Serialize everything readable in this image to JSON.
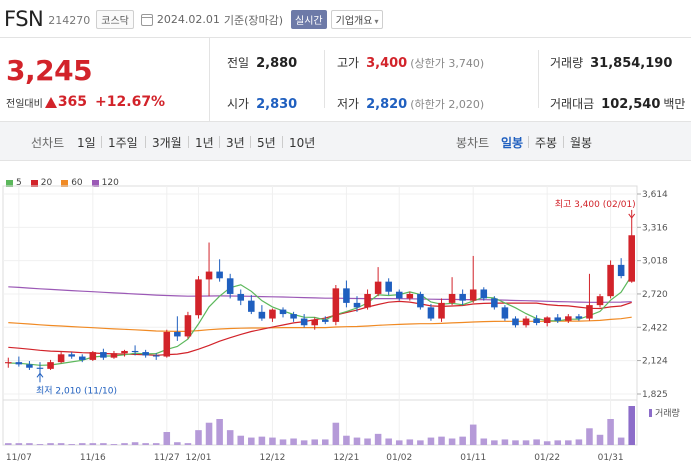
{
  "header": {
    "ticker": "FSN",
    "code": "214270",
    "market": "코스닥",
    "date": "2024.02.01",
    "basis": "기준(장마감)",
    "realtime": "실시간",
    "company_info": "기업개요",
    "calendar_icon": "calendar-icon",
    "chevron_icon": "chevron-down-icon"
  },
  "price": {
    "current": "3,245",
    "change_label": "전일대비",
    "change_amount": "365",
    "change_percent": "+12.67%",
    "up_color": "#d2232a",
    "down_color": "#1f5fbf"
  },
  "stats": {
    "prev_close": {
      "label": "전일",
      "value": "2,880"
    },
    "open": {
      "label": "시가",
      "value": "2,830"
    },
    "high": {
      "label": "고가",
      "value": "3,400",
      "sub": "(상한가 3,740)"
    },
    "low": {
      "label": "저가",
      "value": "2,820",
      "sub": "(하한가 2,020)"
    },
    "volume": {
      "label": "거래량",
      "value": "31,854,190"
    },
    "amount": {
      "label": "거래대금",
      "value": "102,540",
      "unit": "백만"
    }
  },
  "periods": {
    "line_label": "선차트",
    "line_items": [
      "1일",
      "1주일",
      "3개월",
      "1년",
      "3년",
      "5년",
      "10년"
    ],
    "candle_label": "봉차트",
    "candle_items": [
      "일봉",
      "주봉",
      "월봉"
    ],
    "selected_candle": "일봉"
  },
  "chart_data": {
    "type": "candlestick",
    "legend": [
      {
        "name": "5",
        "color": "#5cb85c"
      },
      {
        "name": "20",
        "color": "#d2232a"
      },
      {
        "name": "60",
        "color": "#f08a24"
      },
      {
        "name": "120",
        "color": "#9b59b6"
      }
    ],
    "y_ticks": [
      "3,614",
      "3,316",
      "3,018",
      "2,720",
      "2,422",
      "2,124",
      "1,825"
    ],
    "ylim": [
      1825,
      3614
    ],
    "x_ticks": [
      "11/07",
      "11/16",
      "11/27",
      "12/01",
      "12/12",
      "12/21",
      "01/02",
      "01/11",
      "01/22",
      "01/31"
    ],
    "x_tick_index": [
      1,
      8,
      15,
      18,
      25,
      32,
      37,
      44,
      51,
      57
    ],
    "annotations": {
      "high": "최고 3,400 (02/01)",
      "low": "최저 2,010 (11/10)"
    },
    "volume_label": "거래량",
    "candles": [
      {
        "o": 2100,
        "h": 2150,
        "l": 2060,
        "c": 2110
      },
      {
        "o": 2110,
        "h": 2160,
        "l": 2070,
        "c": 2090
      },
      {
        "o": 2090,
        "h": 2120,
        "l": 2040,
        "c": 2060
      },
      {
        "o": 2060,
        "h": 2110,
        "l": 2010,
        "c": 2050
      },
      {
        "o": 2050,
        "h": 2130,
        "l": 2040,
        "c": 2110
      },
      {
        "o": 2110,
        "h": 2200,
        "l": 2100,
        "c": 2180
      },
      {
        "o": 2180,
        "h": 2200,
        "l": 2140,
        "c": 2160
      },
      {
        "o": 2160,
        "h": 2180,
        "l": 2110,
        "c": 2130
      },
      {
        "o": 2130,
        "h": 2210,
        "l": 2120,
        "c": 2200
      },
      {
        "o": 2200,
        "h": 2230,
        "l": 2130,
        "c": 2150
      },
      {
        "o": 2150,
        "h": 2210,
        "l": 2140,
        "c": 2190
      },
      {
        "o": 2190,
        "h": 2220,
        "l": 2160,
        "c": 2210
      },
      {
        "o": 2210,
        "h": 2260,
        "l": 2170,
        "c": 2200
      },
      {
        "o": 2200,
        "h": 2220,
        "l": 2150,
        "c": 2170
      },
      {
        "o": 2170,
        "h": 2190,
        "l": 2130,
        "c": 2160
      },
      {
        "o": 2160,
        "h": 2400,
        "l": 2150,
        "c": 2380
      },
      {
        "o": 2380,
        "h": 2520,
        "l": 2300,
        "c": 2340
      },
      {
        "o": 2340,
        "h": 2560,
        "l": 2320,
        "c": 2530
      },
      {
        "o": 2530,
        "h": 2880,
        "l": 2500,
        "c": 2850
      },
      {
        "o": 2850,
        "h": 3180,
        "l": 2700,
        "c": 2920
      },
      {
        "o": 2920,
        "h": 3030,
        "l": 2830,
        "c": 2860
      },
      {
        "o": 2860,
        "h": 2900,
        "l": 2680,
        "c": 2720
      },
      {
        "o": 2720,
        "h": 2760,
        "l": 2620,
        "c": 2660
      },
      {
        "o": 2660,
        "h": 2710,
        "l": 2540,
        "c": 2560
      },
      {
        "o": 2560,
        "h": 2620,
        "l": 2480,
        "c": 2500
      },
      {
        "o": 2500,
        "h": 2590,
        "l": 2470,
        "c": 2580
      },
      {
        "o": 2580,
        "h": 2600,
        "l": 2510,
        "c": 2540
      },
      {
        "o": 2540,
        "h": 2560,
        "l": 2470,
        "c": 2500
      },
      {
        "o": 2500,
        "h": 2540,
        "l": 2420,
        "c": 2440
      },
      {
        "o": 2440,
        "h": 2510,
        "l": 2400,
        "c": 2490
      },
      {
        "o": 2490,
        "h": 2520,
        "l": 2450,
        "c": 2470
      },
      {
        "o": 2470,
        "h": 2800,
        "l": 2440,
        "c": 2770
      },
      {
        "o": 2770,
        "h": 2840,
        "l": 2600,
        "c": 2640
      },
      {
        "o": 2640,
        "h": 2700,
        "l": 2560,
        "c": 2600
      },
      {
        "o": 2600,
        "h": 2760,
        "l": 2580,
        "c": 2720
      },
      {
        "o": 2720,
        "h": 2960,
        "l": 2700,
        "c": 2830
      },
      {
        "o": 2830,
        "h": 2860,
        "l": 2710,
        "c": 2740
      },
      {
        "o": 2740,
        "h": 2760,
        "l": 2660,
        "c": 2680
      },
      {
        "o": 2680,
        "h": 2740,
        "l": 2660,
        "c": 2720
      },
      {
        "o": 2720,
        "h": 2740,
        "l": 2580,
        "c": 2600
      },
      {
        "o": 2600,
        "h": 2630,
        "l": 2480,
        "c": 2500
      },
      {
        "o": 2500,
        "h": 2680,
        "l": 2470,
        "c": 2640
      },
      {
        "o": 2640,
        "h": 2870,
        "l": 2620,
        "c": 2720
      },
      {
        "o": 2720,
        "h": 2760,
        "l": 2620,
        "c": 2660
      },
      {
        "o": 2660,
        "h": 3060,
        "l": 2640,
        "c": 2760
      },
      {
        "o": 2760,
        "h": 2780,
        "l": 2660,
        "c": 2680
      },
      {
        "o": 2680,
        "h": 2700,
        "l": 2580,
        "c": 2600
      },
      {
        "o": 2600,
        "h": 2620,
        "l": 2480,
        "c": 2500
      },
      {
        "o": 2500,
        "h": 2520,
        "l": 2420,
        "c": 2440
      },
      {
        "o": 2440,
        "h": 2520,
        "l": 2420,
        "c": 2500
      },
      {
        "o": 2500,
        "h": 2530,
        "l": 2440,
        "c": 2460
      },
      {
        "o": 2460,
        "h": 2520,
        "l": 2430,
        "c": 2510
      },
      {
        "o": 2510,
        "h": 2540,
        "l": 2460,
        "c": 2480
      },
      {
        "o": 2480,
        "h": 2540,
        "l": 2460,
        "c": 2520
      },
      {
        "o": 2520,
        "h": 2540,
        "l": 2480,
        "c": 2500
      },
      {
        "o": 2500,
        "h": 2900,
        "l": 2480,
        "c": 2620
      },
      {
        "o": 2620,
        "h": 2720,
        "l": 2600,
        "c": 2700
      },
      {
        "o": 2700,
        "h": 3020,
        "l": 2680,
        "c": 2980
      },
      {
        "o": 2980,
        "h": 3040,
        "l": 2860,
        "c": 2880
      },
      {
        "o": 2830,
        "h": 3400,
        "l": 2820,
        "c": 3245
      }
    ],
    "volumes": [
      2,
      2,
      2,
      1,
      2,
      2,
      1,
      2,
      2,
      2,
      1,
      2,
      3,
      2,
      2,
      14,
      3,
      2,
      16,
      24,
      28,
      16,
      10,
      8,
      9,
      8,
      6,
      7,
      5,
      6,
      6,
      24,
      10,
      8,
      7,
      12,
      7,
      5,
      6,
      5,
      8,
      9,
      7,
      9,
      22,
      7,
      5,
      6,
      5,
      5,
      6,
      4,
      5,
      5,
      6,
      18,
      11,
      28,
      8,
      42
    ]
  }
}
